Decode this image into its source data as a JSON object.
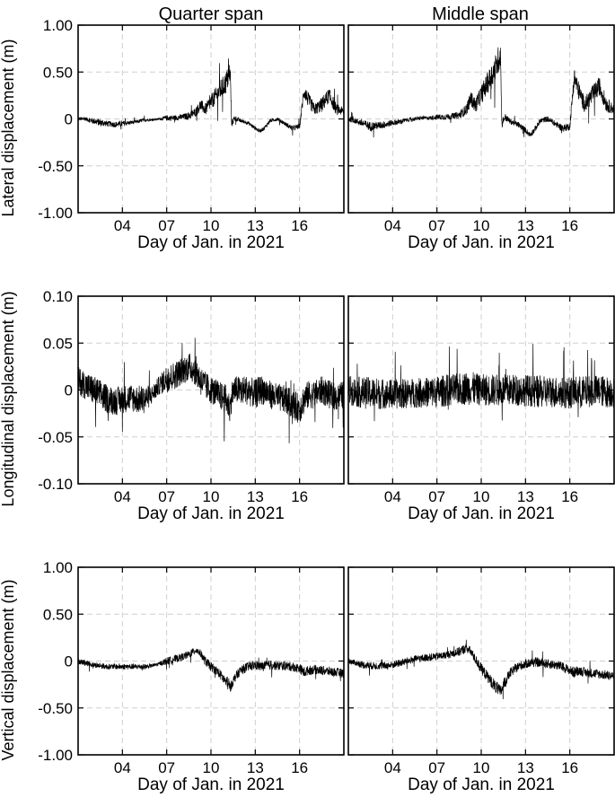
{
  "figure": {
    "col_titles": [
      "Quarter span",
      "Middle span"
    ],
    "xlabel": "Day of Jan. in 2021"
  },
  "chart_data": [
    {
      "type": "line",
      "row": 0,
      "col": 0,
      "title": "Quarter span",
      "xlabel": "Day of Jan. in 2021",
      "ylabel": "Lateral displacement (m)",
      "xlim": [
        1,
        19
      ],
      "ylim": [
        -1.0,
        1.0
      ],
      "xticks": [
        "04",
        "07",
        "10",
        "13",
        "16"
      ],
      "xtick_values": [
        4,
        7,
        10,
        13,
        16
      ],
      "yticks": [
        "1.00",
        "0.50",
        "0",
        "-0.50",
        "-1.00"
      ],
      "ytick_values": [
        1.0,
        0.5,
        0,
        -0.5,
        -1.0
      ],
      "grid": true,
      "series": [
        {
          "x": [
            1.0,
            1.5,
            2.0,
            2.5,
            3.0,
            3.5,
            4.0,
            4.5,
            5.0,
            5.5,
            6.0,
            6.5,
            7.0,
            7.5,
            8.0,
            8.5,
            9.0,
            9.3,
            9.6,
            10.0,
            10.5,
            11.0,
            11.3,
            11.4,
            11.6,
            12.0,
            12.5,
            13.0,
            13.3,
            13.6,
            14.0,
            14.5,
            15.0,
            15.5,
            16.0,
            16.3,
            16.6,
            17.0,
            17.5,
            18.0,
            18.5,
            19.0
          ],
          "y": [
            0,
            0,
            -0.02,
            -0.04,
            -0.05,
            -0.06,
            -0.05,
            -0.04,
            -0.03,
            -0.01,
            -0.01,
            0,
            0.01,
            0.01,
            0.02,
            0.03,
            0.08,
            0.15,
            0.1,
            0.18,
            0.28,
            0.38,
            0.5,
            -0.05,
            0.01,
            -0.02,
            -0.04,
            -0.1,
            -0.13,
            -0.1,
            -0.02,
            0,
            -0.05,
            -0.1,
            -0.08,
            0.3,
            0.2,
            0.1,
            0.15,
            0.25,
            0.1,
            0.08
          ],
          "noise": [
            0.02,
            0.02,
            0.03,
            0.04,
            0.03,
            0.03,
            0.03,
            0.02,
            0.02,
            0.02,
            0.01,
            0.01,
            0.03,
            0.03,
            0.03,
            0.04,
            0.05,
            0.06,
            0.06,
            0.08,
            0.1,
            0.12,
            0.12,
            0.04,
            0.03,
            0.02,
            0.02,
            0.02,
            0.02,
            0.02,
            0.02,
            0.02,
            0.02,
            0.03,
            0.03,
            0.08,
            0.08,
            0.06,
            0.08,
            0.08,
            0.06,
            0.04
          ]
        }
      ]
    },
    {
      "type": "line",
      "row": 0,
      "col": 1,
      "title": "Middle span",
      "xlabel": "Day of Jan. in 2021",
      "ylabel": "",
      "xlim": [
        1,
        19
      ],
      "ylim": [
        -1.0,
        1.0
      ],
      "xticks": [
        "04",
        "07",
        "10",
        "13",
        "16"
      ],
      "xtick_values": [
        4,
        7,
        10,
        13,
        16
      ],
      "yticks": [],
      "ytick_values": [
        1.0,
        0.5,
        0,
        -0.5,
        -1.0
      ],
      "grid": true,
      "series": [
        {
          "x": [
            1.0,
            1.5,
            2.0,
            2.5,
            3.0,
            3.5,
            4.0,
            4.5,
            5.0,
            5.5,
            6.0,
            6.5,
            7.0,
            7.5,
            8.0,
            8.5,
            9.0,
            9.3,
            9.6,
            10.0,
            10.5,
            11.0,
            11.3,
            11.4,
            11.6,
            12.0,
            12.5,
            13.0,
            13.3,
            13.6,
            14.0,
            14.5,
            15.0,
            15.5,
            16.0,
            16.3,
            16.6,
            17.0,
            17.5,
            18.0,
            18.5,
            19.0
          ],
          "y": [
            0,
            -0.02,
            -0.05,
            -0.08,
            -0.07,
            -0.06,
            -0.04,
            -0.03,
            -0.01,
            0,
            0.01,
            0.01,
            0.02,
            0.02,
            0.03,
            0.04,
            0.1,
            0.22,
            0.14,
            0.26,
            0.4,
            0.55,
            0.7,
            -0.05,
            0.02,
            -0.03,
            -0.06,
            -0.12,
            -0.17,
            -0.12,
            -0.02,
            0,
            -0.05,
            -0.1,
            -0.08,
            0.45,
            0.3,
            0.15,
            0.25,
            0.35,
            0.15,
            0.1
          ],
          "noise": [
            0.03,
            0.03,
            0.04,
            0.05,
            0.04,
            0.04,
            0.03,
            0.03,
            0.02,
            0.02,
            0.02,
            0.02,
            0.03,
            0.03,
            0.03,
            0.04,
            0.06,
            0.08,
            0.08,
            0.1,
            0.12,
            0.15,
            0.15,
            0.05,
            0.04,
            0.03,
            0.03,
            0.03,
            0.03,
            0.03,
            0.03,
            0.03,
            0.03,
            0.04,
            0.04,
            0.1,
            0.1,
            0.08,
            0.1,
            0.1,
            0.08,
            0.05
          ]
        }
      ]
    },
    {
      "type": "line",
      "row": 1,
      "col": 0,
      "title": "",
      "xlabel": "Day of Jan. in 2021",
      "ylabel": "Longitudinal displacement (m)",
      "xlim": [
        1,
        19
      ],
      "ylim": [
        -0.1,
        0.1
      ],
      "xticks": [
        "04",
        "07",
        "10",
        "13",
        "16"
      ],
      "xtick_values": [
        4,
        7,
        10,
        13,
        16
      ],
      "yticks": [
        "0.10",
        "0.05",
        "0",
        "-0.05",
        "-0.10"
      ],
      "ytick_values": [
        0.1,
        0.05,
        0,
        -0.05,
        -0.1
      ],
      "grid": true,
      "series": [
        {
          "x": [
            1.0,
            1.5,
            2.0,
            2.5,
            3.0,
            3.5,
            4.0,
            4.5,
            5.0,
            5.5,
            6.0,
            6.5,
            7.0,
            7.5,
            8.0,
            8.5,
            9.0,
            9.3,
            9.6,
            10.0,
            10.5,
            11.0,
            11.3,
            11.4,
            11.6,
            12.0,
            12.5,
            13.0,
            13.3,
            13.6,
            14.0,
            14.5,
            15.0,
            15.5,
            16.0,
            16.3,
            16.6,
            17.0,
            17.5,
            18.0,
            18.5,
            19.0
          ],
          "y": [
            0.01,
            0.005,
            0,
            -0.005,
            -0.01,
            -0.012,
            -0.01,
            -0.008,
            -0.01,
            -0.01,
            -0.005,
            0.005,
            0.012,
            0.015,
            0.02,
            0.025,
            0.02,
            0.01,
            0.005,
            0,
            -0.005,
            -0.01,
            -0.02,
            -0.005,
            0,
            0,
            0,
            -0.005,
            0,
            0,
            -0.005,
            -0.008,
            -0.01,
            -0.015,
            -0.02,
            -0.01,
            -0.005,
            -0.005,
            0,
            -0.005,
            -0.008,
            -0.005
          ],
          "noise": [
            0.015,
            0.015,
            0.016,
            0.016,
            0.015,
            0.015,
            0.015,
            0.015,
            0.015,
            0.015,
            0.01,
            0.01,
            0.015,
            0.015,
            0.015,
            0.015,
            0.016,
            0.016,
            0.015,
            0.015,
            0.015,
            0.016,
            0.016,
            0.015,
            0.015,
            0.015,
            0.016,
            0.016,
            0.016,
            0.016,
            0.015,
            0.015,
            0.015,
            0.016,
            0.016,
            0.016,
            0.015,
            0.015,
            0.015,
            0.015,
            0.015,
            0.015
          ]
        }
      ]
    },
    {
      "type": "line",
      "row": 1,
      "col": 1,
      "title": "",
      "xlabel": "Day of Jan. in 2021",
      "ylabel": "",
      "xlim": [
        1,
        19
      ],
      "ylim": [
        -0.1,
        0.1
      ],
      "xticks": [
        "04",
        "07",
        "10",
        "13",
        "16"
      ],
      "xtick_values": [
        4,
        7,
        10,
        13,
        16
      ],
      "yticks": [],
      "ytick_values": [
        0.1,
        0.05,
        0,
        -0.05,
        -0.1
      ],
      "grid": true,
      "series": [
        {
          "x": [
            1.0,
            1.5,
            2.0,
            2.5,
            3.0,
            3.5,
            4.0,
            4.5,
            5.0,
            5.5,
            6.0,
            6.5,
            7.0,
            7.5,
            8.0,
            8.5,
            9.0,
            9.3,
            9.6,
            10.0,
            10.5,
            11.0,
            11.3,
            11.4,
            11.6,
            12.0,
            12.5,
            13.0,
            13.3,
            13.6,
            14.0,
            14.5,
            15.0,
            15.5,
            16.0,
            16.3,
            16.6,
            17.0,
            17.5,
            18.0,
            18.5,
            19.0
          ],
          "y": [
            0,
            -0.002,
            -0.003,
            -0.003,
            -0.004,
            -0.004,
            -0.005,
            -0.004,
            -0.004,
            -0.003,
            -0.003,
            -0.002,
            -0.002,
            -0.001,
            0,
            0.001,
            0.002,
            0.002,
            0.001,
            0,
            0,
            0,
            0,
            0,
            0,
            0,
            0,
            0,
            -0.001,
            -0.001,
            -0.002,
            -0.002,
            -0.002,
            -0.003,
            -0.003,
            -0.002,
            -0.002,
            -0.002,
            -0.001,
            -0.001,
            -0.002,
            -0.002
          ],
          "noise": [
            0.016,
            0.016,
            0.017,
            0.017,
            0.017,
            0.016,
            0.016,
            0.016,
            0.016,
            0.016,
            0.016,
            0.016,
            0.017,
            0.017,
            0.017,
            0.017,
            0.018,
            0.018,
            0.017,
            0.017,
            0.017,
            0.017,
            0.017,
            0.017,
            0.017,
            0.017,
            0.017,
            0.017,
            0.017,
            0.017,
            0.017,
            0.017,
            0.017,
            0.017,
            0.017,
            0.017,
            0.017,
            0.017,
            0.017,
            0.017,
            0.017,
            0.017
          ]
        }
      ]
    },
    {
      "type": "line",
      "row": 2,
      "col": 0,
      "title": "",
      "xlabel": "Day of Jan. in 2021",
      "ylabel": "Vertical displacement (m)",
      "xlim": [
        1,
        19
      ],
      "ylim": [
        -1.0,
        1.0
      ],
      "xticks": [
        "04",
        "07",
        "10",
        "13",
        "16"
      ],
      "xtick_values": [
        4,
        7,
        10,
        13,
        16
      ],
      "yticks": [
        "1.00",
        "0.50",
        "0",
        "-0.50",
        "-1.00"
      ],
      "ytick_values": [
        1.0,
        0.5,
        0,
        -0.5,
        -1.0
      ],
      "grid": true,
      "series": [
        {
          "x": [
            1.0,
            1.5,
            2.0,
            2.5,
            3.0,
            3.5,
            4.0,
            4.5,
            5.0,
            5.5,
            6.0,
            6.5,
            7.0,
            7.5,
            8.0,
            8.5,
            9.0,
            9.3,
            9.6,
            10.0,
            10.5,
            11.0,
            11.3,
            11.4,
            11.6,
            12.0,
            12.5,
            13.0,
            13.3,
            13.6,
            14.0,
            14.5,
            15.0,
            15.5,
            16.0,
            16.3,
            16.6,
            17.0,
            17.5,
            18.0,
            18.5,
            19.0
          ],
          "y": [
            0,
            -0.02,
            -0.04,
            -0.05,
            -0.06,
            -0.06,
            -0.06,
            -0.06,
            -0.06,
            -0.06,
            -0.05,
            -0.03,
            0,
            0.02,
            0.04,
            0.07,
            0.12,
            0.08,
            0,
            -0.06,
            -0.12,
            -0.22,
            -0.28,
            -0.25,
            -0.18,
            -0.1,
            -0.06,
            -0.04,
            -0.06,
            -0.05,
            -0.04,
            -0.05,
            -0.05,
            -0.06,
            -0.08,
            -0.12,
            -0.1,
            -0.09,
            -0.1,
            -0.11,
            -0.12,
            -0.13
          ],
          "noise": [
            0.03,
            0.03,
            0.03,
            0.03,
            0.03,
            0.03,
            0.03,
            0.03,
            0.03,
            0.03,
            0.02,
            0.02,
            0.04,
            0.04,
            0.04,
            0.04,
            0.04,
            0.04,
            0.05,
            0.05,
            0.05,
            0.06,
            0.06,
            0.05,
            0.05,
            0.05,
            0.05,
            0.05,
            0.05,
            0.05,
            0.05,
            0.05,
            0.05,
            0.05,
            0.05,
            0.06,
            0.05,
            0.05,
            0.05,
            0.05,
            0.05,
            0.05
          ]
        }
      ]
    },
    {
      "type": "line",
      "row": 2,
      "col": 1,
      "title": "",
      "xlabel": "Day of Jan. in 2021",
      "ylabel": "",
      "xlim": [
        1,
        19
      ],
      "ylim": [
        -1.0,
        1.0
      ],
      "xticks": [
        "04",
        "07",
        "10",
        "13",
        "16"
      ],
      "xtick_values": [
        4,
        7,
        10,
        13,
        16
      ],
      "yticks": [],
      "ytick_values": [
        1.0,
        0.5,
        0,
        -0.5,
        -1.0
      ],
      "grid": true,
      "series": [
        {
          "x": [
            1.0,
            1.5,
            2.0,
            2.5,
            3.0,
            3.5,
            4.0,
            4.5,
            5.0,
            5.5,
            6.0,
            6.5,
            7.0,
            7.5,
            8.0,
            8.5,
            9.0,
            9.3,
            9.6,
            10.0,
            10.5,
            11.0,
            11.3,
            11.4,
            11.6,
            12.0,
            12.5,
            13.0,
            13.3,
            13.6,
            14.0,
            14.5,
            15.0,
            15.5,
            16.0,
            16.3,
            16.6,
            17.0,
            17.5,
            18.0,
            18.5,
            19.0
          ],
          "y": [
            0,
            -0.02,
            -0.04,
            -0.05,
            -0.05,
            -0.05,
            -0.04,
            -0.02,
            0,
            0.02,
            0.03,
            0.04,
            0.05,
            0.06,
            0.08,
            0.1,
            0.14,
            0.1,
            0.02,
            -0.08,
            -0.18,
            -0.28,
            -0.33,
            -0.3,
            -0.22,
            -0.12,
            -0.06,
            -0.03,
            -0.02,
            -0.01,
            -0.02,
            -0.03,
            -0.04,
            -0.06,
            -0.1,
            -0.12,
            -0.1,
            -0.12,
            -0.13,
            -0.14,
            -0.15,
            -0.16
          ],
          "noise": [
            0.03,
            0.03,
            0.04,
            0.04,
            0.04,
            0.04,
            0.04,
            0.04,
            0.04,
            0.04,
            0.04,
            0.04,
            0.04,
            0.04,
            0.04,
            0.05,
            0.05,
            0.05,
            0.05,
            0.06,
            0.06,
            0.07,
            0.07,
            0.06,
            0.06,
            0.05,
            0.05,
            0.05,
            0.05,
            0.05,
            0.05,
            0.05,
            0.05,
            0.05,
            0.05,
            0.06,
            0.05,
            0.05,
            0.05,
            0.05,
            0.05,
            0.05
          ]
        }
      ]
    }
  ]
}
